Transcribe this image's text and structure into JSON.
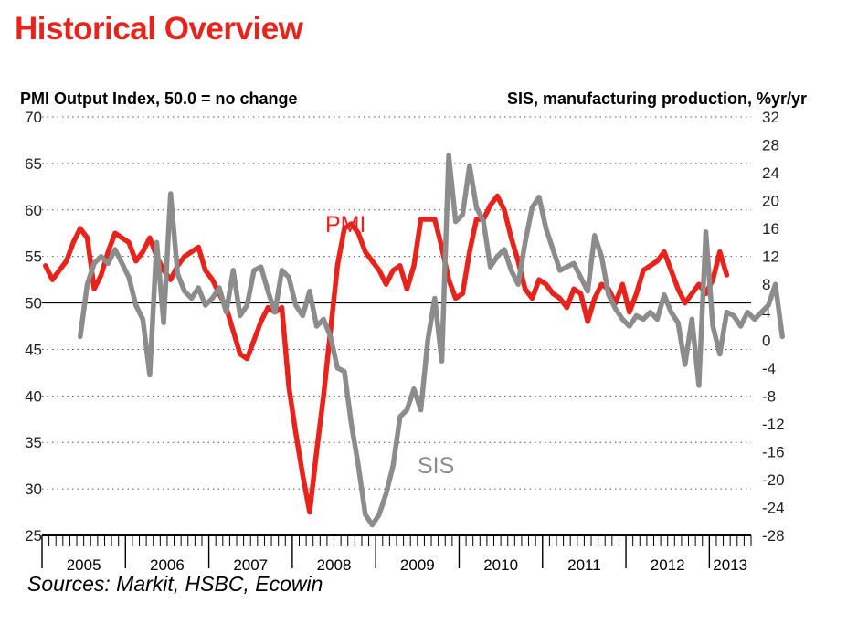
{
  "header": {
    "title": "Historical Overview",
    "left_axis_title": "PMI Output Index, 50.0 = no change",
    "right_axis_title": "SIS, manufacturing production, %yr/yr"
  },
  "footer": {
    "source": "Sources: Markit, HSBC, Ecowin"
  },
  "colors": {
    "title": "#e8231c",
    "pmi": "#e8231c",
    "sis": "#8c8c8c",
    "grid": "#555555",
    "sis_label": "#8c8c8c"
  },
  "chart_data": {
    "type": "line",
    "title": "Historical Overview",
    "ylabel": "PMI Output Index, 50.0 = no change",
    "y2label": "SIS, manufacturing production, %yr/yr",
    "x_unit": "month",
    "x_range": [
      "2005-01",
      "2013-06"
    ],
    "ylim": [
      25,
      70
    ],
    "y2lim": [
      -28,
      32
    ],
    "yticks": [
      25,
      30,
      35,
      40,
      45,
      50,
      55,
      60,
      65,
      70
    ],
    "y2ticks": [
      -28,
      -24,
      -20,
      -16,
      -12,
      -8,
      -4,
      0,
      4,
      8,
      12,
      16,
      20,
      24,
      28,
      32
    ],
    "year_labels": [
      "2005",
      "2006",
      "2007",
      "2008",
      "2009",
      "2010",
      "2011",
      "2012",
      "2013"
    ],
    "reference_line": 50,
    "grid": "horizontal dotted",
    "series": [
      {
        "name": "PMI",
        "axis": "left",
        "start": "2005-01",
        "values": [
          54.0,
          52.5,
          53.5,
          54.5,
          56.5,
          58.0,
          57.0,
          51.5,
          53.0,
          55.5,
          57.5,
          57.0,
          56.5,
          54.5,
          55.5,
          57.0,
          55.0,
          53.5,
          52.5,
          54.0,
          55.0,
          55.5,
          56.0,
          53.5,
          52.5,
          51.0,
          49.5,
          47.0,
          44.5,
          44.0,
          46.0,
          48.0,
          49.5,
          49.0,
          49.5,
          41.0,
          36.0,
          31.5,
          27.5,
          34.0,
          40.0,
          47.0,
          54.0,
          58.0,
          58.5,
          57.5,
          55.5,
          54.5,
          53.5,
          52.0,
          53.5,
          54.0,
          51.5,
          54.0,
          59.0,
          59.0,
          59.0,
          56.0,
          52.5,
          50.5,
          51.0,
          55.5,
          59.0,
          59.0,
          60.5,
          61.5,
          60.0,
          57.0,
          54.5,
          51.5,
          50.5,
          52.5,
          52.0,
          51.0,
          50.5,
          49.5,
          51.5,
          51.0,
          48.0,
          50.5,
          52.0,
          51.5,
          50.0,
          52.0,
          49.0,
          51.0,
          53.5,
          54.0,
          54.5,
          55.5,
          53.5,
          51.5,
          50.0,
          51.0,
          52.0,
          51.0,
          52.5,
          55.5,
          53.0
        ]
      },
      {
        "name": "SIS",
        "axis": "right",
        "start": "2005-06",
        "values": [
          0.5,
          8.0,
          11.0,
          12.0,
          11.0,
          13.0,
          11.0,
          9.0,
          5.0,
          3.0,
          -5.0,
          14.0,
          2.5,
          21.0,
          9.5,
          7.0,
          6.0,
          7.5,
          5.0,
          6.0,
          7.5,
          4.0,
          10.0,
          3.5,
          5.0,
          10.0,
          10.5,
          7.0,
          4.0,
          10.0,
          9.0,
          5.0,
          3.5,
          7.0,
          2.0,
          3.0,
          0.5,
          -4.0,
          -4.5,
          -12.0,
          -18.0,
          -25.0,
          -26.5,
          -25.0,
          -22.0,
          -18.0,
          -11.0,
          -10.0,
          -7.0,
          -10.0,
          0.0,
          6.0,
          -3.0,
          26.5,
          17.0,
          18.0,
          25.0,
          19.0,
          17.0,
          10.5,
          12.0,
          13.0,
          10.0,
          8.0,
          14.0,
          19.0,
          20.5,
          16.0,
          13.0,
          10.0,
          10.5,
          11.0,
          9.0,
          7.0,
          15.0,
          12.0,
          6.5,
          4.5,
          3.0,
          2.0,
          3.5,
          3.0,
          4.0,
          3.0,
          6.5,
          4.0,
          2.5,
          -3.5,
          3.0,
          -6.5,
          15.5,
          2.0,
          -2.0,
          4.0,
          3.5,
          2.0,
          4.0,
          3.0,
          4.0,
          5.0,
          8.0,
          0.5
        ]
      }
    ],
    "annotations": [
      {
        "text": "PMI",
        "series": "PMI"
      },
      {
        "text": "SIS",
        "series": "SIS"
      }
    ]
  }
}
